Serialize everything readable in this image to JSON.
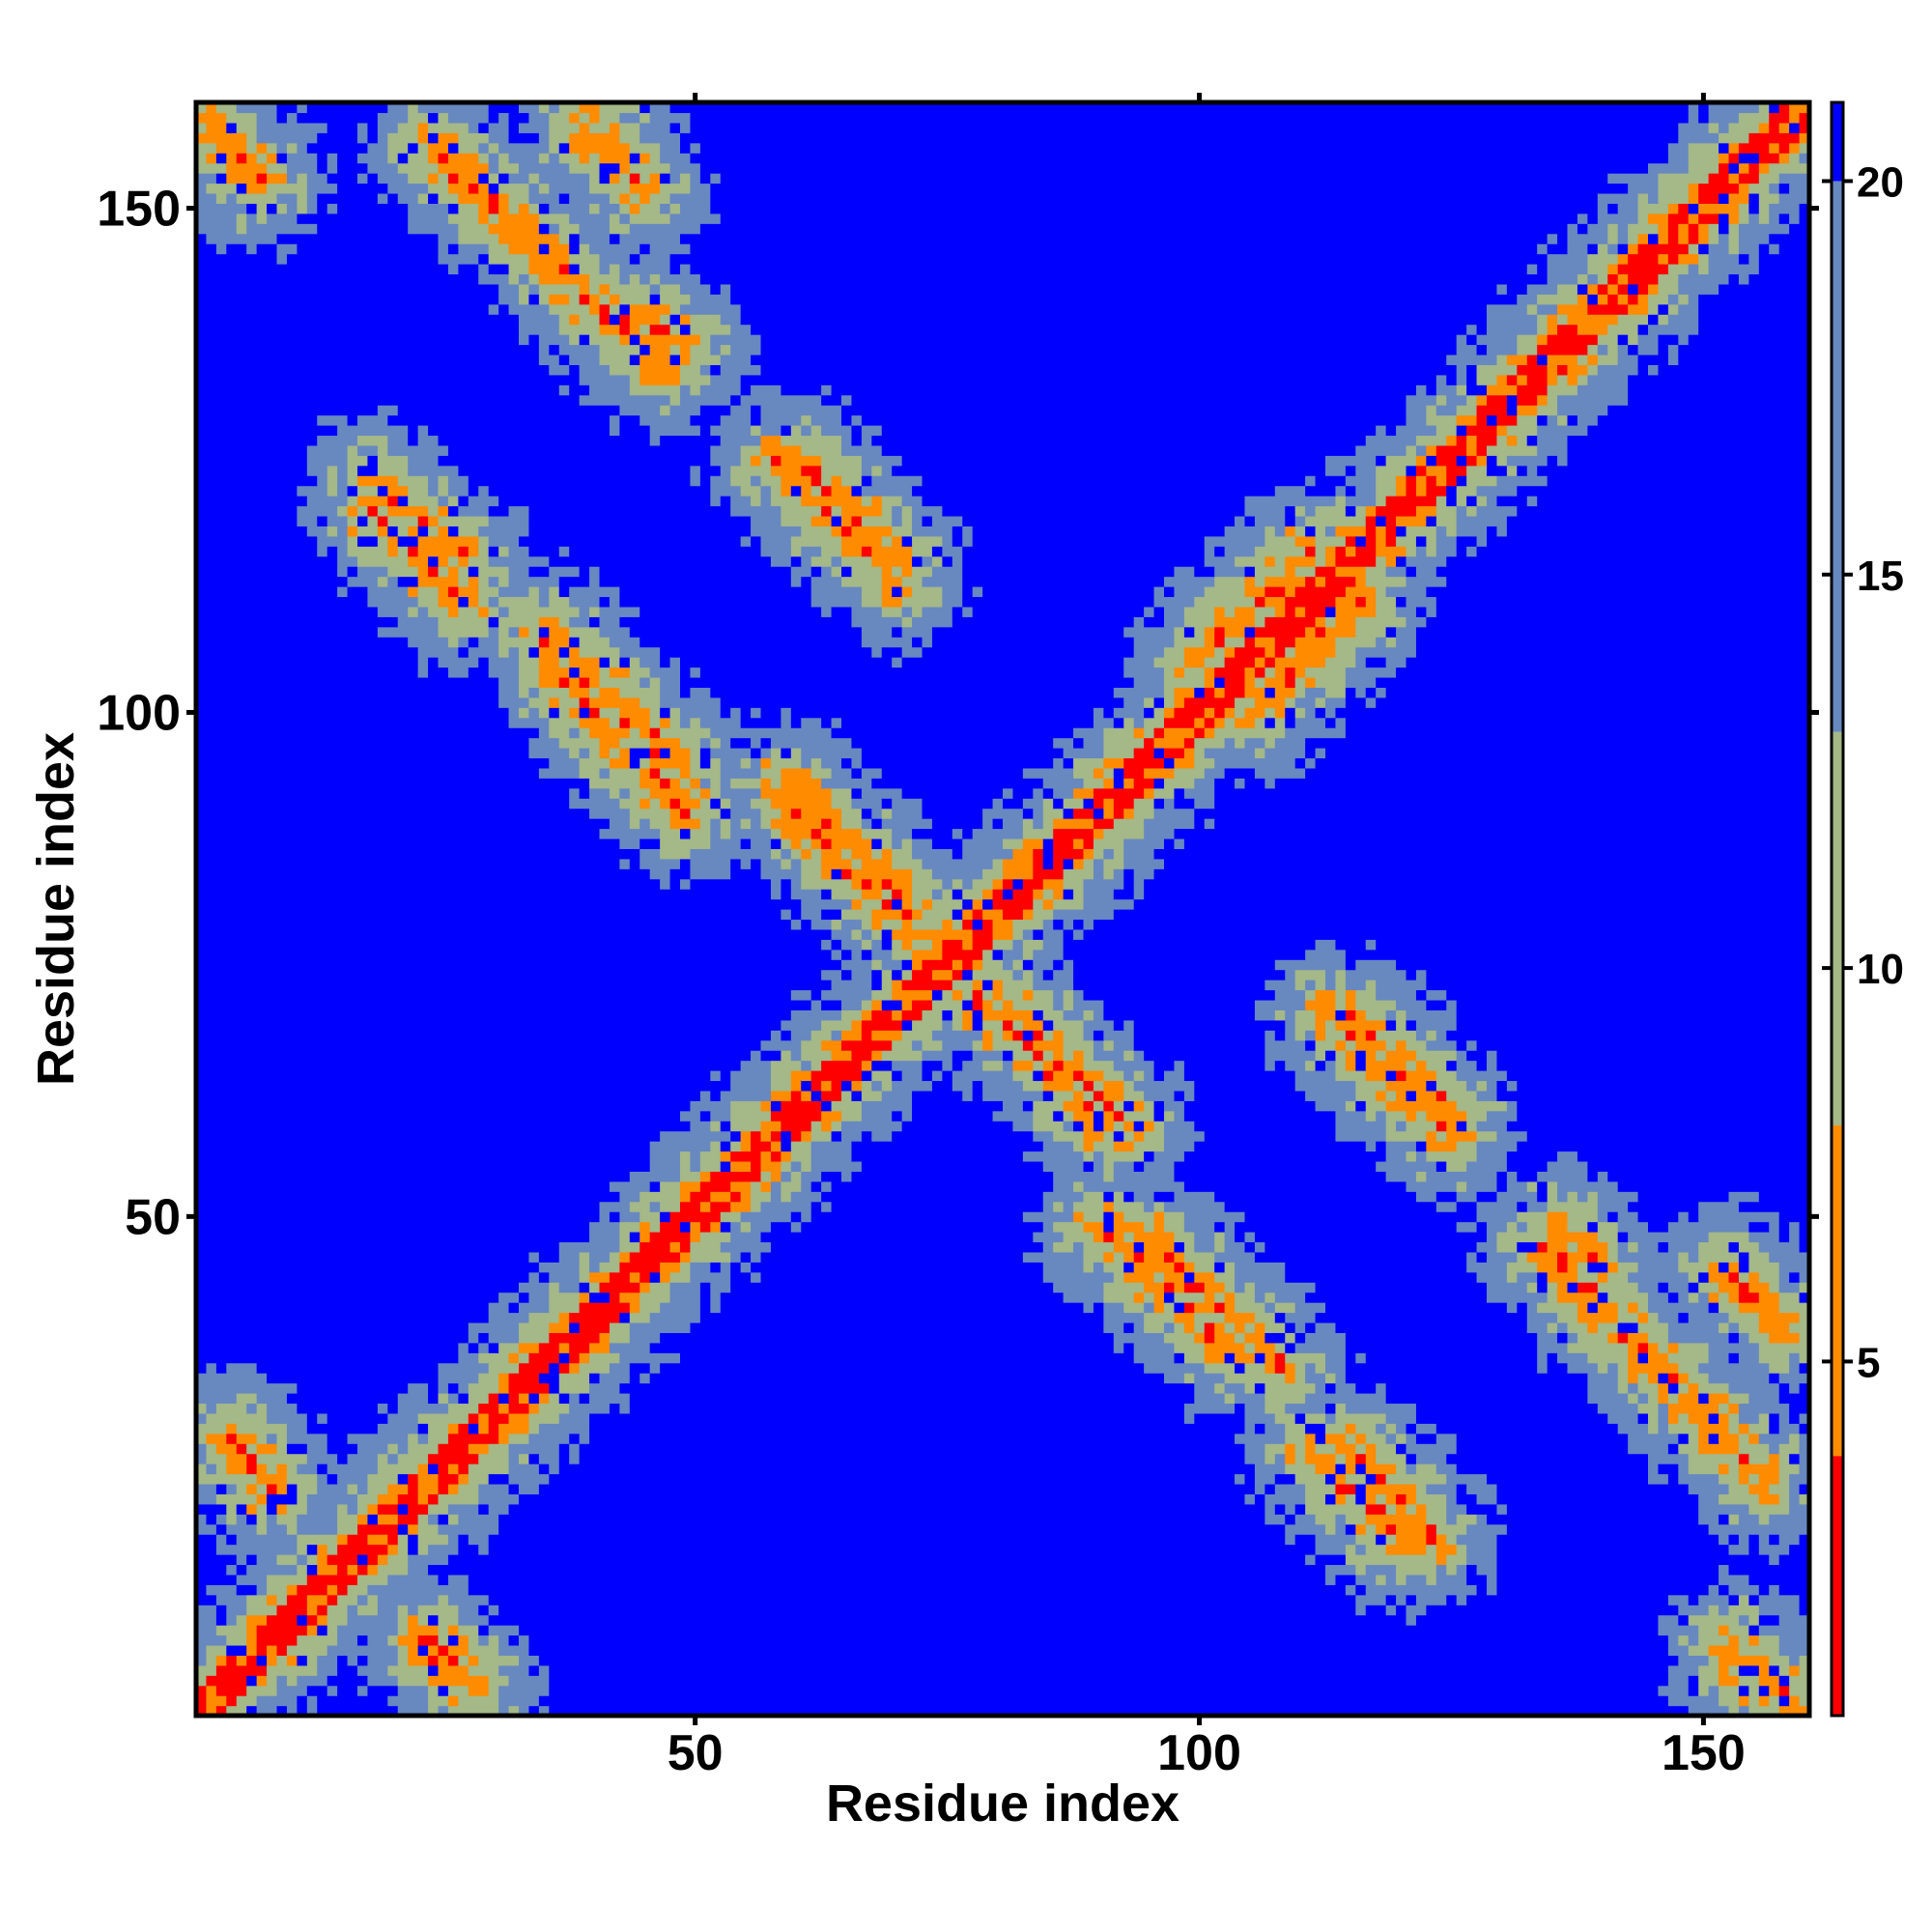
{
  "chart_data": {
    "type": "heatmap",
    "title": "",
    "xlabel": "Residue index",
    "ylabel": "Residue index",
    "n_residues": 160,
    "x_range": [
      1,
      160
    ],
    "y_range": [
      1,
      160
    ],
    "x_ticks": [
      50,
      100,
      150
    ],
    "y_ticks": [
      50,
      100,
      150
    ],
    "colorbar": {
      "ticks": [
        5,
        10,
        15,
        20
      ],
      "range": [
        0.5,
        21
      ],
      "bands": [
        {
          "max": 3.8,
          "color": "#ff0000"
        },
        {
          "max": 8.0,
          "color": "#ff8c00"
        },
        {
          "max": 13.0,
          "color": "#a4b888"
        },
        {
          "max": 20.0,
          "color": "#6888c0"
        },
        {
          "max": 21.0,
          "color": "#0000ff"
        }
      ]
    },
    "structure": {
      "diagonal_width": 2,
      "strands_dist": [
        {
          "i1": 3,
          "j1": 157,
          "i2": 7,
          "j2": 153
        },
        {
          "i1": 24,
          "j1": 156,
          "i2": 47,
          "j2": 134
        },
        {
          "i1": 18,
          "j1": 120,
          "i2": 27,
          "j2": 111
        },
        {
          "i1": 35,
          "j1": 108,
          "i2": 48,
          "j2": 95
        },
        {
          "i1": 59,
          "j1": 93,
          "i2": 72,
          "j2": 80
        },
        {
          "i1": 58,
          "j1": 125,
          "i2": 70,
          "j2": 113
        },
        {
          "i1": 78,
          "j1": 72,
          "i2": 91,
          "j2": 59
        },
        {
          "i1": 115,
          "j1": 70,
          "i2": 125,
          "j2": 60
        },
        {
          "i1": 90,
          "j1": 49,
          "i2": 103,
          "j2": 37
        },
        {
          "i1": 115,
          "j1": 27,
          "i2": 123,
          "j2": 18
        },
        {
          "i1": 136,
          "j1": 49,
          "i2": 139,
          "j2": 45
        },
        {
          "i1": 152,
          "j1": 45,
          "i2": 158,
          "j2": 39
        },
        {
          "i1": 4,
          "j1": 28,
          "i2": 8,
          "j2": 24
        },
        {
          "i1": 23,
          "j1": 8,
          "i2": 27,
          "j2": 4
        },
        {
          "i1": 153,
          "j1": 6,
          "i2": 158,
          "j2": 2
        }
      ],
      "strands_parallel": [
        {
          "i1": 100,
          "j1": 105,
          "i2": 111,
          "j2": 116
        }
      ]
    }
  }
}
